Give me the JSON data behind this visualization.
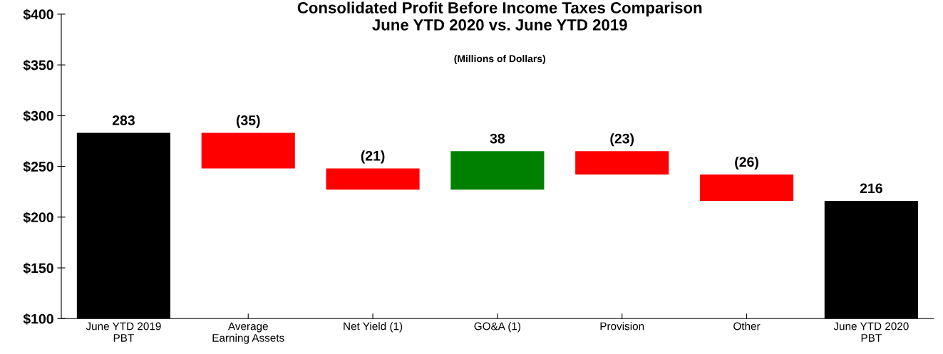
{
  "chart_data": {
    "type": "bar",
    "title": "Consolidated Profit Before Income Taxes Comparison\nJune YTD 2020 vs. June YTD 2019",
    "subtitle": "(Millions of Dollars)",
    "categories": [
      "June YTD 2019\nPBT",
      "Average\nEarning Assets",
      "Net Yield (1)",
      "GO&A (1)",
      "Provision",
      "Other",
      "June YTD 2020\nPBT"
    ],
    "values": [
      283,
      -35,
      -21,
      38,
      -23,
      -26,
      216
    ],
    "base": [
      0,
      283,
      248,
      227,
      265,
      242,
      0
    ],
    "colors": [
      "#000000",
      "#ff0000",
      "#ff0000",
      "#008000",
      "#ff0000",
      "#ff0000",
      "#000000"
    ],
    "value_labels": [
      "283",
      "(35)",
      "(21)",
      "38",
      "(23)",
      "(26)",
      "216"
    ],
    "ylim": [
      100,
      400
    ],
    "yticks": [
      {
        "value": 100,
        "label": "$100"
      },
      {
        "value": 150,
        "label": "$150"
      },
      {
        "value": 200,
        "label": "$200"
      },
      {
        "value": 250,
        "label": "$250"
      },
      {
        "value": 300,
        "label": "$300"
      },
      {
        "value": 350,
        "label": "$350"
      },
      {
        "value": 400,
        "label": "$400"
      }
    ],
    "grid": false,
    "legend": false
  }
}
